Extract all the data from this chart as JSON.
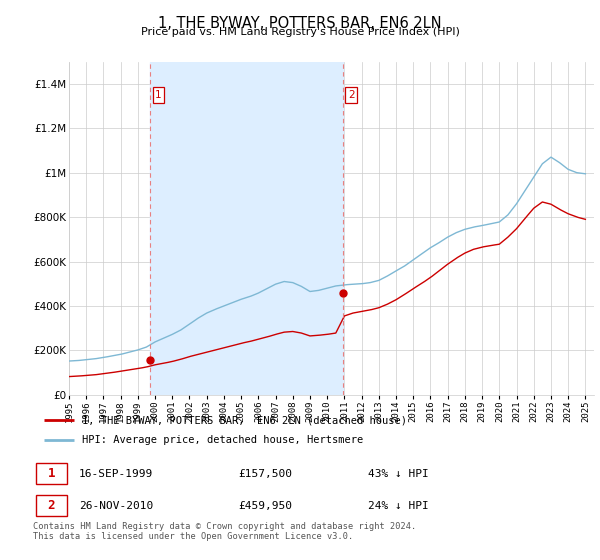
{
  "title": "1, THE BYWAY, POTTERS BAR, EN6 2LN",
  "subtitle": "Price paid vs. HM Land Registry's House Price Index (HPI)",
  "ylim": [
    0,
    1500000
  ],
  "yticks": [
    0,
    200000,
    400000,
    600000,
    800000,
    1000000,
    1200000,
    1400000
  ],
  "hpi_color": "#7eb8d4",
  "price_color": "#CC0000",
  "shade_color": "#ddeeff",
  "sale1_x": 1999.71,
  "sale1_price": 157500,
  "sale2_x": 2010.91,
  "sale2_price": 459950,
  "sale1_date_str": "16-SEP-1999",
  "sale1_price_str": "£157,500",
  "sale1_pct_str": "43% ↓ HPI",
  "sale2_date_str": "26-NOV-2010",
  "sale2_price_str": "£459,950",
  "sale2_pct_str": "24% ↓ HPI",
  "legend_label1": "1, THE BYWAY, POTTERS BAR,  EN6 2LN (detached house)",
  "legend_label2": "HPI: Average price, detached house, Hertsmere",
  "footer": "Contains HM Land Registry data © Crown copyright and database right 2024.\nThis data is licensed under the Open Government Licence v3.0.",
  "xlim_start": 1995.0,
  "xlim_end": 2025.5
}
